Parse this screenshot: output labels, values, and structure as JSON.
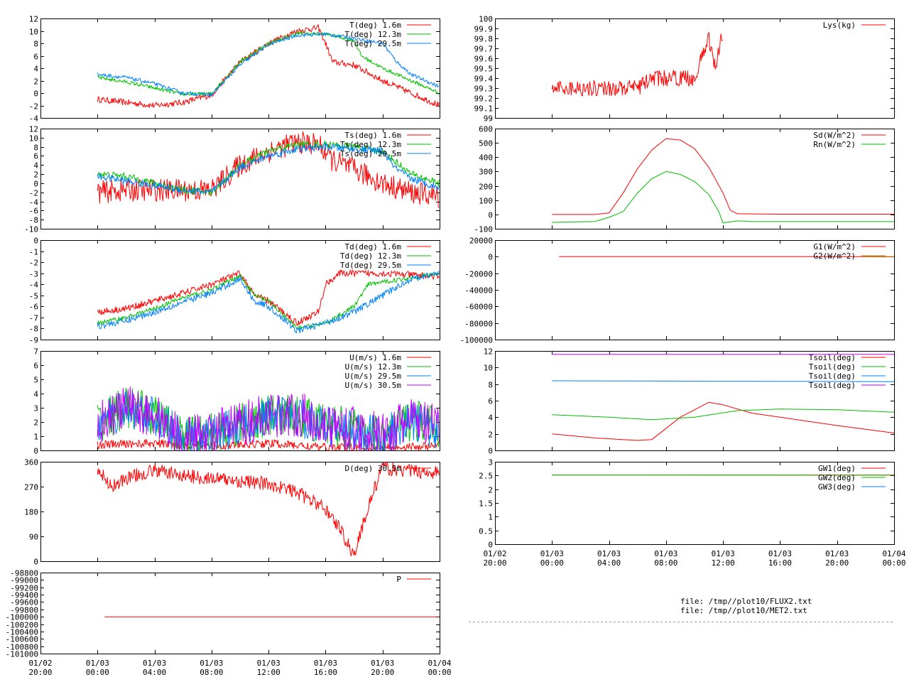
{
  "colors": {
    "red": "#ff0000",
    "green": "#00c000",
    "blue": "#0080ff",
    "purple": "#c000ff",
    "olive": "#a08000"
  },
  "files": [
    "file: /tmp//plot10/FLUX2.txt",
    "file: /tmp//plot10/MET2.txt"
  ],
  "x_tick_labels": [
    [
      "01/02",
      "20:00"
    ],
    [
      "01/03",
      "00:00"
    ],
    [
      "01/03",
      "04:00"
    ],
    [
      "01/03",
      "08:00"
    ],
    [
      "01/03",
      "12:00"
    ],
    [
      "01/03",
      "16:00"
    ],
    [
      "01/03",
      "20:00"
    ],
    [
      "01/04",
      "00:00"
    ]
  ],
  "chart_data": [
    {
      "id": "air-temperature",
      "type": "line",
      "xlim": [
        0,
        28
      ],
      "ylim": [
        -4,
        12
      ],
      "yticks": [
        "-4",
        "-2",
        "0",
        "2",
        "4",
        "6",
        "8",
        "10",
        "12"
      ],
      "series": [
        {
          "name": "T(deg)  1.6m",
          "color": "red",
          "noise": 0.5,
          "x": [
            4,
            6,
            8,
            10,
            12,
            14,
            16,
            18,
            19.5,
            20,
            20.5,
            22,
            24,
            26,
            28
          ],
          "y": [
            -1,
            -1.5,
            -2,
            -1.5,
            -0.3,
            5,
            8,
            10,
            10.5,
            8,
            5,
            4.5,
            2,
            0,
            -2
          ]
        },
        {
          "name": "T(deg) 12.3m",
          "color": "green",
          "noise": 0.3,
          "x": [
            4,
            6,
            8,
            10,
            12,
            14,
            16,
            18,
            20,
            22,
            22.5,
            24,
            26,
            28
          ],
          "y": [
            2.5,
            1.8,
            0.8,
            -0.2,
            -0.1,
            5,
            8,
            9.6,
            9.5,
            8.5,
            6,
            4,
            2,
            0
          ]
        },
        {
          "name": "T(deg) 29.5m",
          "color": "blue",
          "noise": 0.3,
          "x": [
            4,
            6,
            8,
            10,
            12,
            14,
            16,
            18,
            20,
            22,
            24,
            25,
            26,
            28
          ],
          "y": [
            3,
            2.5,
            1.5,
            0,
            -0.3,
            4.5,
            7.8,
            9.3,
            9.5,
            8.8,
            8,
            5,
            3,
            1
          ]
        }
      ]
    },
    {
      "id": "surface-temperature",
      "type": "line",
      "xlim": [
        0,
        28
      ],
      "ylim": [
        -10,
        12
      ],
      "yticks": [
        "-10",
        "-8",
        "-6",
        "-4",
        "-2",
        "0",
        "2",
        "4",
        "6",
        "8",
        "10",
        "12"
      ],
      "series": [
        {
          "name": "Ts(deg)  1.6m",
          "color": "red",
          "noise": 2.5,
          "x": [
            4,
            6,
            8,
            10,
            12,
            14,
            16,
            18,
            19.5,
            20.5,
            22,
            24,
            26,
            28
          ],
          "y": [
            -2,
            -1.5,
            -1.5,
            -1.5,
            -1.5,
            4,
            7,
            9,
            8.5,
            5,
            3,
            0,
            -2,
            -3
          ]
        },
        {
          "name": "Ts(deg) 12.3m",
          "color": "green",
          "noise": 0.8,
          "x": [
            4,
            6,
            8,
            10,
            12,
            14,
            16,
            18,
            20,
            22,
            24,
            26,
            28
          ],
          "y": [
            2,
            1.5,
            0,
            -1.5,
            -2,
            4,
            7,
            8.5,
            8.5,
            8,
            7,
            2,
            0
          ]
        },
        {
          "name": "Ts(deg) 29.5m",
          "color": "blue",
          "noise": 0.8,
          "x": [
            4,
            6,
            8,
            10,
            12,
            14,
            16,
            18,
            20,
            22,
            24,
            25,
            26,
            28
          ],
          "y": [
            1.5,
            0.5,
            -0.5,
            -1.5,
            -2,
            3.5,
            6,
            7.5,
            8,
            7.5,
            7,
            3,
            1,
            -1
          ]
        }
      ]
    },
    {
      "id": "dewpoint",
      "type": "line",
      "xlim": [
        0,
        28
      ],
      "ylim": [
        -9,
        0
      ],
      "yticks": [
        "-9",
        "-8",
        "-7",
        "-6",
        "-5",
        "-4",
        "-3",
        "-2",
        "-1",
        "0"
      ],
      "series": [
        {
          "name": "Td(deg)  1.6m",
          "color": "red",
          "noise": 0.3,
          "x": [
            4,
            6,
            8,
            10,
            12,
            14,
            15,
            16,
            18,
            19.5,
            20,
            21,
            24,
            28
          ],
          "y": [
            -6.5,
            -6.2,
            -5.5,
            -4.8,
            -4,
            -3,
            -5,
            -5.5,
            -7.5,
            -6.5,
            -4,
            -3,
            -3,
            -3.3
          ]
        },
        {
          "name": "Td(deg) 12.3m",
          "color": "green",
          "noise": 0.2,
          "x": [
            4,
            6,
            8,
            10,
            12,
            14,
            15,
            16,
            18,
            20,
            22,
            23,
            24,
            28
          ],
          "y": [
            -7.5,
            -7,
            -6.2,
            -5.2,
            -4.5,
            -3.2,
            -5,
            -5.5,
            -8,
            -7.5,
            -6,
            -4,
            -3.8,
            -3
          ]
        },
        {
          "name": "Td(deg) 29.5m",
          "color": "blue",
          "noise": 0.3,
          "x": [
            4,
            6,
            8,
            10,
            12,
            14,
            15,
            16,
            18,
            20,
            22,
            24,
            26,
            28
          ],
          "y": [
            -7.8,
            -7.3,
            -6.5,
            -5.6,
            -4.8,
            -3.5,
            -5.5,
            -6,
            -8.2,
            -7.5,
            -6.5,
            -5,
            -3.5,
            -3
          ]
        }
      ]
    },
    {
      "id": "wind-speed",
      "type": "line",
      "xlim": [
        0,
        28
      ],
      "ylim": [
        0,
        7
      ],
      "yticks": [
        "0",
        "1",
        "2",
        "3",
        "4",
        "5",
        "6",
        "7"
      ],
      "series": [
        {
          "name": "U(m/s)  1.6m",
          "color": "red",
          "noise": 0.3,
          "x": [
            4,
            8,
            12,
            16,
            20,
            24,
            28
          ],
          "y": [
            0.4,
            0.5,
            0.3,
            0.5,
            0.2,
            0.2,
            0.3
          ]
        },
        {
          "name": "U(m/s) 12.3m",
          "color": "green",
          "noise": 1.5,
          "x": [
            4,
            6,
            8,
            10,
            12,
            14,
            16,
            18,
            20,
            22,
            24,
            26,
            28
          ],
          "y": [
            2,
            3,
            2.5,
            0.8,
            1.2,
            1.8,
            2.5,
            2.5,
            1.8,
            1.5,
            1,
            2.2,
            1.5
          ]
        },
        {
          "name": "U(m/s) 29.5m",
          "color": "blue",
          "noise": 1.4,
          "x": [
            4,
            6,
            8,
            10,
            12,
            14,
            16,
            18,
            20,
            22,
            24,
            26,
            28
          ],
          "y": [
            1.9,
            2.9,
            2.4,
            0.8,
            1.1,
            1.7,
            2.4,
            2.4,
            1.7,
            1.4,
            1,
            2.1,
            1.4
          ]
        },
        {
          "name": "U(m/s) 30.5m",
          "color": "purple",
          "noise": 1.6,
          "x": [
            4,
            6,
            8,
            10,
            12,
            14,
            16,
            18,
            20,
            22,
            24,
            26,
            28
          ],
          "y": [
            2,
            3,
            2.5,
            0.8,
            1.2,
            1.8,
            2.5,
            2.6,
            1.8,
            1.5,
            1,
            2.2,
            1.5
          ]
        }
      ]
    },
    {
      "id": "wind-direction",
      "type": "line",
      "xlim": [
        0,
        28
      ],
      "ylim": [
        0,
        360
      ],
      "yticks": [
        "0",
        "90",
        "180",
        "270",
        "360"
      ],
      "series": [
        {
          "name": "D(deg)  30.5m",
          "color": "red",
          "noise": 25,
          "x": [
            4,
            5,
            6,
            8,
            10,
            12,
            14,
            16,
            18,
            20,
            21,
            22,
            23,
            24,
            25,
            28
          ],
          "y": [
            330,
            270,
            300,
            330,
            310,
            300,
            290,
            280,
            250,
            190,
            120,
            20,
            200,
            340,
            330,
            320
          ]
        }
      ]
    },
    {
      "id": "pressure",
      "type": "line",
      "xlim": [
        0,
        28
      ],
      "ylim": [
        -101000,
        -98800
      ],
      "yticks": [
        "-101000",
        "-100800",
        "-100600",
        "-100400",
        "-100200",
        "-100000",
        "-99800",
        "-99600",
        "-99400",
        "-99200",
        "-99000",
        "-98800"
      ],
      "series": [
        {
          "name": "P",
          "color": "red",
          "noise": 0,
          "x": [
            4.5,
            28
          ],
          "y": [
            -100000,
            -100000
          ]
        }
      ]
    },
    {
      "id": "lysimeter",
      "type": "line",
      "xlim": [
        0,
        28
      ],
      "ylim": [
        99,
        100
      ],
      "yticks": [
        "99",
        "99.1",
        "99.2",
        "99.3",
        "99.4",
        "99.5",
        "99.6",
        "99.7",
        "99.8",
        "99.9",
        "100"
      ],
      "series": [
        {
          "name": "Lys(kg)",
          "color": "red",
          "noise": 0.08,
          "x": [
            4,
            8,
            10,
            11,
            12,
            13,
            14,
            15,
            15.5,
            16
          ],
          "y": [
            99.3,
            99.3,
            99.3,
            99.4,
            99.4,
            99.4,
            99.4,
            99.8,
            99.5,
            99.9
          ]
        }
      ]
    },
    {
      "id": "radiation",
      "type": "line",
      "xlim": [
        0,
        28
      ],
      "ylim": [
        -100,
        600
      ],
      "yticks": [
        "-100",
        "0",
        "100",
        "200",
        "300",
        "400",
        "500",
        "600"
      ],
      "series": [
        {
          "name": "Sd(W/m^2)",
          "color": "red",
          "noise": 0,
          "x": [
            4,
            7,
            8,
            9,
            10,
            11,
            12,
            13,
            14,
            15,
            16,
            16.5,
            17,
            20,
            28
          ],
          "y": [
            0,
            0,
            10,
            150,
            320,
            450,
            530,
            520,
            460,
            330,
            150,
            30,
            5,
            2,
            2
          ]
        },
        {
          "name": "Rn(W/m^2)",
          "color": "green",
          "noise": 0,
          "x": [
            4,
            7,
            8,
            9,
            10,
            11,
            12,
            13,
            14,
            15,
            15.7,
            16,
            17,
            18,
            28
          ],
          "y": [
            -55,
            -50,
            -20,
            20,
            150,
            250,
            300,
            280,
            230,
            140,
            20,
            -60,
            -45,
            -50,
            -50
          ]
        }
      ]
    },
    {
      "id": "ground-heat-flux",
      "type": "line",
      "xlim": [
        0,
        28
      ],
      "ylim": [
        -100000,
        20000
      ],
      "yticks": [
        "-100000",
        "-80000",
        "-60000",
        "-40000",
        "-20000",
        "0",
        "20000"
      ],
      "series": [
        {
          "name": "G1(W/m^2)",
          "color": "red",
          "noise": 0,
          "x": [
            4.5,
            28
          ],
          "y": [
            0,
            0
          ]
        },
        {
          "name": "G2(W/m^2)",
          "color": "olive",
          "noise": 0,
          "x": [
            26,
            28
          ],
          "y": [
            -200,
            -200
          ]
        }
      ]
    },
    {
      "id": "soil-temperature",
      "type": "line",
      "xlim": [
        0,
        28
      ],
      "ylim": [
        0,
        12
      ],
      "yticks": [
        "0",
        "2",
        "4",
        "6",
        "8",
        "10",
        "12"
      ],
      "series": [
        {
          "name": "Tsoil(deg)",
          "color": "red",
          "noise": 0,
          "x": [
            4,
            7,
            10,
            11,
            13,
            15,
            16,
            18,
            20,
            24,
            28
          ],
          "y": [
            2,
            1.5,
            1.2,
            1.3,
            4,
            5.8,
            5.5,
            4.5,
            4,
            3,
            2.1
          ]
        },
        {
          "name": "Tsoil(deg)",
          "color": "green",
          "noise": 0,
          "x": [
            4,
            8,
            11,
            14,
            17,
            20,
            24,
            28
          ],
          "y": [
            4.3,
            4,
            3.7,
            4,
            4.8,
            5,
            4.9,
            4.6
          ]
        },
        {
          "name": "Tsoil(deg)",
          "color": "blue",
          "noise": 0,
          "x": [
            4,
            28
          ],
          "y": [
            8.4,
            8.3
          ]
        },
        {
          "name": "Tsoil(deg)",
          "color": "purple",
          "noise": 0,
          "x": [
            4,
            28
          ],
          "y": [
            11.6,
            11.6
          ]
        }
      ]
    },
    {
      "id": "groundwater",
      "type": "line",
      "xlim": [
        0,
        28
      ],
      "ylim": [
        0,
        3
      ],
      "yticks": [
        "0",
        "0.5",
        "1",
        "1.5",
        "2",
        "2.5",
        "3"
      ],
      "series": [
        {
          "name": "GW1(deg)",
          "color": "red",
          "noise": 0,
          "x": [
            4,
            28
          ],
          "y": [
            2.52,
            2.52
          ]
        },
        {
          "name": "GW2(deg)",
          "color": "green",
          "noise": 0,
          "x": [
            4,
            28
          ],
          "y": [
            2.52,
            2.51
          ]
        },
        {
          "name": "GW3(deg)",
          "color": "blue",
          "noise": 0,
          "x": [],
          "y": []
        }
      ]
    }
  ]
}
